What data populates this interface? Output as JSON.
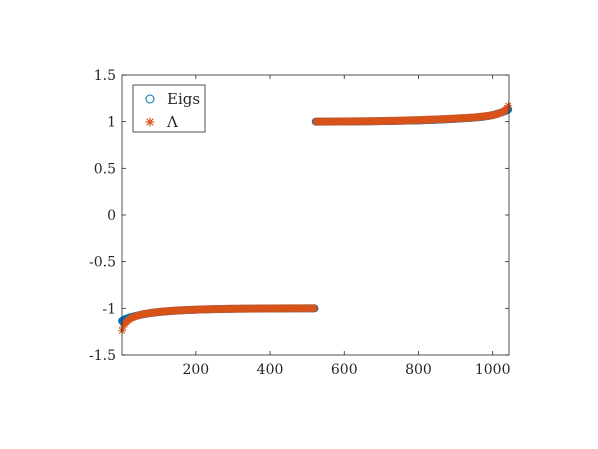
{
  "chart_data": {
    "type": "scatter",
    "title": "",
    "xlabel": "",
    "ylabel": "",
    "xlim": [
      1,
      1044
    ],
    "ylim": [
      -1.5,
      1.5
    ],
    "x_ticks": [
      200,
      400,
      600,
      800,
      1000
    ],
    "x_tick_labels": [
      "200",
      "400",
      "600",
      "800",
      "1000"
    ],
    "y_ticks": [
      -1.5,
      -1,
      -0.5,
      0,
      0.5,
      1,
      1.5
    ],
    "y_tick_labels": [
      "-1.5",
      "-1",
      "-0.5",
      "0",
      "0.5",
      "1",
      "1.5"
    ],
    "grid": false,
    "box": true,
    "legend": "top-left",
    "series": [
      {
        "name": "Eigs",
        "marker": "circle",
        "color": "#0072BD",
        "x": [
          1,
          5,
          10,
          20,
          30,
          45,
          60,
          80,
          100,
          130,
          160,
          200,
          250,
          300,
          350,
          400,
          450,
          500,
          521,
          522,
          540,
          575,
          620,
          680,
          740,
          800,
          850,
          900,
          940,
          970,
          990,
          1005,
          1015,
          1025,
          1035,
          1040,
          1044
        ],
        "y": [
          -1.135,
          -1.125,
          -1.115,
          -1.1,
          -1.088,
          -1.075,
          -1.062,
          -1.05,
          -1.04,
          -1.03,
          -1.022,
          -1.015,
          -1.009,
          -1.005,
          -1.003,
          -1.002,
          -1.001,
          -1.0,
          -1.0,
          1.0,
          1.0,
          1.001,
          1.002,
          1.004,
          1.008,
          1.013,
          1.02,
          1.03,
          1.04,
          1.05,
          1.062,
          1.075,
          1.088,
          1.1,
          1.115,
          1.125,
          1.135
        ]
      },
      {
        "name": "Λ",
        "marker": "asterisk",
        "color": "#D95319",
        "x": [
          1,
          4,
          8,
          14,
          20,
          28,
          38,
          50,
          65,
          85,
          110,
          140,
          180,
          230,
          290,
          350,
          420,
          480,
          521,
          522,
          560,
          620,
          680,
          740,
          800,
          855,
          905,
          950,
          980,
          1000,
          1015,
          1025,
          1033,
          1038,
          1042,
          1044
        ],
        "y": [
          -1.24,
          -1.2,
          -1.17,
          -1.14,
          -1.12,
          -1.1,
          -1.085,
          -1.07,
          -1.058,
          -1.045,
          -1.035,
          -1.025,
          -1.017,
          -1.01,
          -1.005,
          -1.003,
          -1.001,
          -1.0,
          -1.0,
          1.0,
          1.001,
          1.003,
          1.005,
          1.01,
          1.017,
          1.025,
          1.035,
          1.045,
          1.058,
          1.07,
          1.085,
          1.1,
          1.12,
          1.14,
          1.17,
          1.24
        ]
      }
    ]
  }
}
